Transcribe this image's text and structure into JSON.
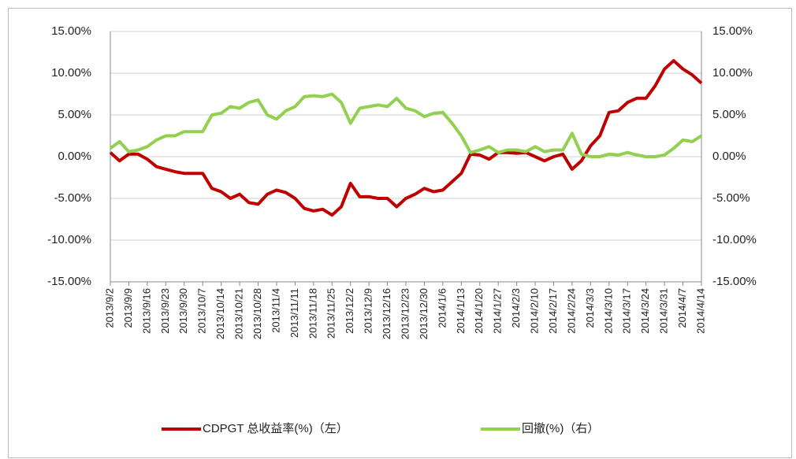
{
  "chart_data": {
    "type": "line",
    "categories": [
      "2013/9/2",
      null,
      "2013/9/9",
      null,
      "2013/9/16",
      null,
      "2013/9/23",
      null,
      "2013/9/30",
      null,
      "2013/10/7",
      null,
      "2013/10/14",
      null,
      "2013/10/21",
      null,
      "2013/10/28",
      null,
      "2013/11/4",
      null,
      "2013/11/11",
      null,
      "2013/11/18",
      null,
      "2013/11/25",
      null,
      "2013/12/2",
      null,
      "2013/12/9",
      null,
      "2013/12/16",
      null,
      "2013/12/23",
      null,
      "2013/12/30",
      null,
      "2014/1/6",
      null,
      "2014/1/13",
      null,
      "2014/1/20",
      null,
      "2014/1/27",
      null,
      "2014/2/3",
      null,
      "2014/2/10",
      null,
      "2014/2/17",
      null,
      "2014/2/24",
      null,
      "2014/3/3",
      null,
      "2014/3/10",
      null,
      "2014/3/17",
      null,
      "2014/3/24",
      null,
      "2014/3/31",
      null,
      "2014/4/7",
      null,
      "2014/4/14"
    ],
    "series": [
      {
        "name": "CDPGT 总收益率(%)（左）",
        "color": "#c00000",
        "axis": "y",
        "values": [
          0.5,
          -0.5,
          0.3,
          0.3,
          -0.3,
          -1.2,
          -1.5,
          -1.8,
          -2.0,
          -2.0,
          -2.0,
          -3.8,
          -4.2,
          -5.0,
          -4.5,
          -5.5,
          -5.7,
          -4.5,
          -4.0,
          -4.3,
          -5.0,
          -6.2,
          -6.5,
          -6.3,
          -7.0,
          -6.0,
          -3.2,
          -4.8,
          -4.8,
          -5.0,
          -5.0,
          -6.0,
          -5.0,
          -4.5,
          -3.8,
          -4.2,
          -4.0,
          -3.0,
          -2.0,
          0.3,
          0.2,
          -0.3,
          0.5,
          0.5,
          0.4,
          0.5,
          0.0,
          -0.5,
          0.0,
          0.3,
          -1.5,
          -0.5,
          1.3,
          2.5,
          5.3,
          5.5,
          6.5,
          7.0,
          7.0,
          8.5,
          10.5,
          11.5,
          10.5,
          9.8,
          8.8
        ]
      },
      {
        "name": "回撤(%)（右）",
        "color": "#92d050",
        "axis": "y2",
        "values": [
          1.0,
          1.8,
          0.6,
          0.8,
          1.2,
          2.0,
          2.5,
          2.5,
          3.0,
          3.0,
          3.0,
          5.0,
          5.2,
          6.0,
          5.8,
          6.5,
          6.8,
          5.0,
          4.5,
          5.5,
          6.0,
          7.2,
          7.3,
          7.2,
          7.5,
          6.5,
          4.0,
          5.8,
          6.0,
          6.2,
          6.0,
          7.0,
          5.8,
          5.5,
          4.8,
          5.2,
          5.3,
          4.0,
          2.5,
          0.5,
          0.8,
          1.2,
          0.5,
          0.8,
          0.8,
          0.6,
          1.2,
          0.6,
          0.8,
          0.8,
          2.8,
          0.3,
          0.0,
          0.0,
          0.3,
          0.2,
          0.5,
          0.2,
          0.0,
          0.0,
          0.2,
          1.0,
          2.0,
          1.8,
          2.5
        ]
      }
    ],
    "ylim": [
      -15,
      15
    ],
    "yticks": [
      {
        "value": -15,
        "label": "-15.00%"
      },
      {
        "value": -10,
        "label": "-10.00%"
      },
      {
        "value": -5,
        "label": "-5.00%"
      },
      {
        "value": 0,
        "label": "0.00%"
      },
      {
        "value": 5,
        "label": "5.00%"
      },
      {
        "value": 10,
        "label": "10.00%"
      },
      {
        "value": 15,
        "label": "15.00%"
      }
    ],
    "y2lim": [
      -15,
      15
    ],
    "y2ticks": [
      {
        "value": -15,
        "label": "-15.00%"
      },
      {
        "value": -10,
        "label": "-10.00%"
      },
      {
        "value": -5,
        "label": "-5.00%"
      },
      {
        "value": 0,
        "label": "0.00%"
      },
      {
        "value": 5,
        "label": "5.00%"
      },
      {
        "value": 10,
        "label": "10.00%"
      },
      {
        "value": 15,
        "label": "15.00%"
      }
    ],
    "grid": true,
    "legend": "bottom"
  }
}
